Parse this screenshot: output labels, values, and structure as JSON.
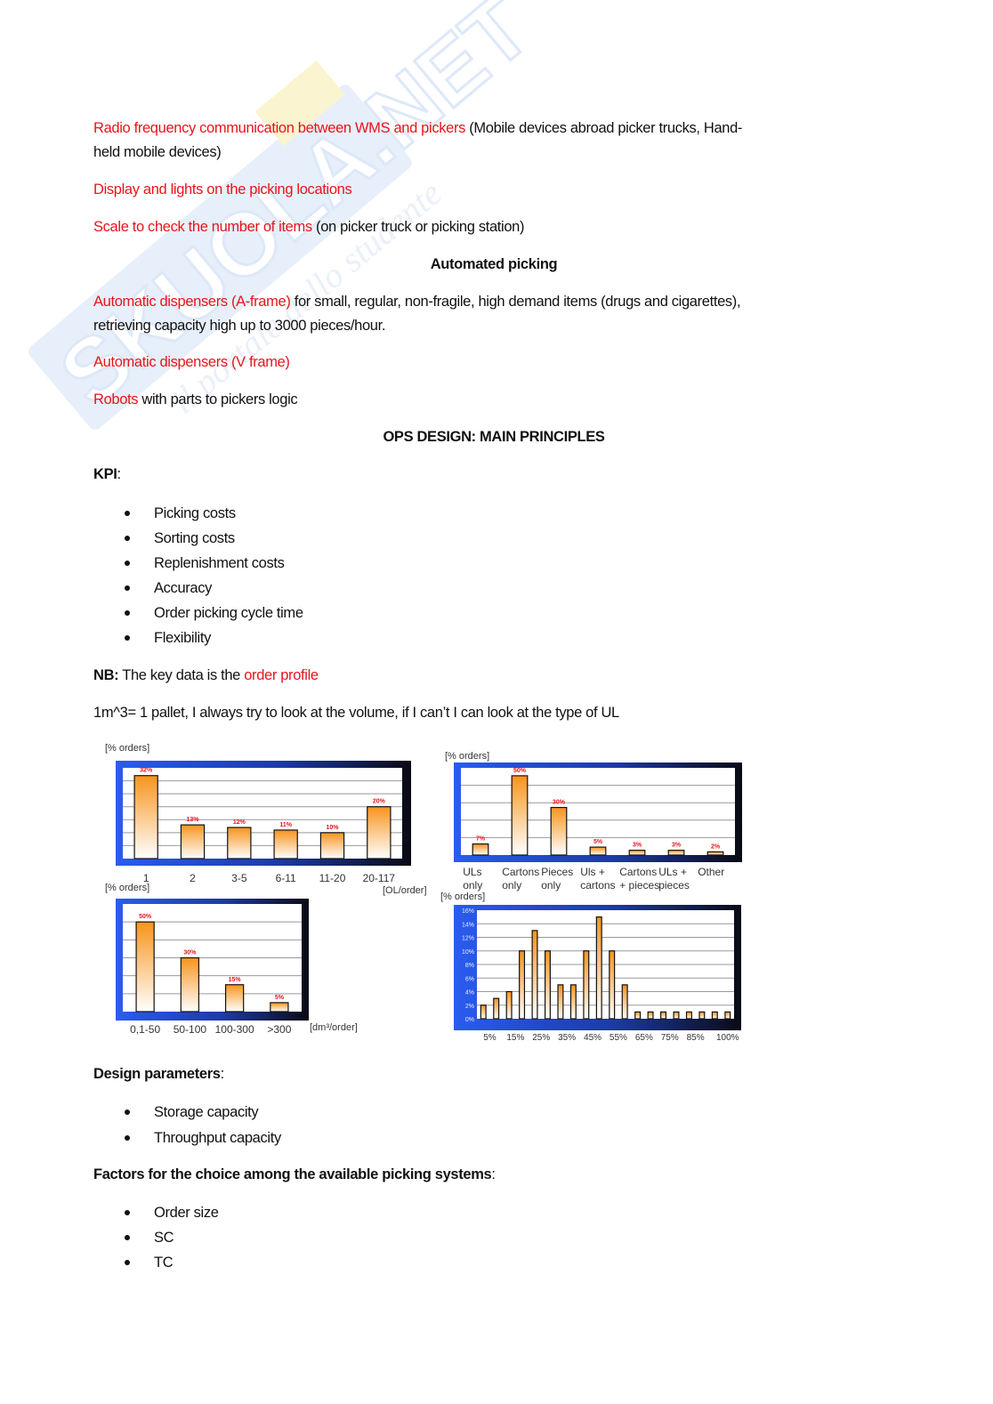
{
  "watermark": {
    "logo_text": "SKUOLA.NET",
    "tagline": "il portale dello studente"
  },
  "paragraphs": {
    "rf_red": "Radio frequency communication between WMS and pickers",
    "rf_rest1": " (Mobile devices abroad picker trucks, Hand-",
    "rf_rest2": "held mobile devices)",
    "display_red": "Display and lights on the picking locations",
    "scale_red": "Scale to check the number of items",
    "scale_rest": " (on picker truck or picking station)",
    "automated_heading": "Automated picking",
    "aframe_red": "Automatic dispensers (A-frame)",
    "aframe_rest1": " for small, regular, non-fragile, high demand items (drugs and cigarettes),",
    "aframe_rest2": "retrieving capacity high up to 3000 pieces/hour.",
    "vframe_red": "Automatic dispensers (V frame)",
    "robots_red": "Robots",
    "robots_rest": " with parts to pickers logic",
    "ops_heading": "OPS DESIGN: MAIN PRINCIPLES",
    "kpi_label": "KPI",
    "kpi_colon": ":",
    "kpi_items": [
      "Picking costs",
      "Sorting costs",
      "Replenishment costs",
      "Accuracy",
      "Order picking cycle time",
      "Flexibility"
    ],
    "nb_label": "NB:",
    "nb_text": " The key data is the ",
    "nb_red": "order profile",
    "volume_text": "1m^3= 1 pallet, I always try to look at the volume, if I can’t I can look at the type of UL",
    "design_label": "Design parameters",
    "design_colon": ":",
    "design_items": [
      "Storage capacity",
      "Throughput capacity"
    ],
    "factors_label": "Factors for the choice among the available picking systems",
    "factors_colon": ":",
    "factors_items": [
      "Order size",
      "SC",
      "TC"
    ]
  },
  "colors": {
    "highlight_red": "#e8141c",
    "frame_blue": "#2a5cf0",
    "frame_dark": "#0a0a14",
    "bar_orange": "#f7941d",
    "value_label_red": "#e8141c"
  },
  "chart_data": [
    {
      "type": "bar",
      "ylabel": "[% orders]",
      "xlabel": "[OL/order]",
      "categories": [
        "1",
        "2",
        "3-5",
        "6-11",
        "11-20",
        "20-117"
      ],
      "values": [
        32,
        13,
        12,
        11,
        10,
        20
      ],
      "value_labels": [
        "32%",
        "13%",
        "12%",
        "11%",
        "10%",
        "20%"
      ],
      "ylim": [
        0,
        35
      ],
      "grid": true
    },
    {
      "type": "bar",
      "ylabel": "[% orders]",
      "xlabel": "",
      "categories": [
        [
          "ULs",
          "only"
        ],
        [
          "Cartons",
          "only"
        ],
        [
          "Pieces",
          "only"
        ],
        [
          "Uls +",
          "cartons"
        ],
        [
          "Cartons",
          "+ pieces"
        ],
        [
          "ULs +",
          "pieces"
        ],
        [
          "Other",
          ""
        ]
      ],
      "values": [
        7,
        50,
        30,
        5,
        3,
        3,
        2
      ],
      "value_labels": [
        "7%",
        "50%",
        "30%",
        "5%",
        "3%",
        "3%",
        "2%"
      ],
      "ylim": [
        0,
        55
      ],
      "grid": true
    },
    {
      "type": "bar",
      "ylabel": "[% orders]",
      "xlabel": "[dm³/order]",
      "categories": [
        "0,1-50",
        "50-100",
        "100-300",
        ">300"
      ],
      "values": [
        50,
        30,
        15,
        5
      ],
      "value_labels": [
        "50%",
        "30%",
        "15%",
        "5%"
      ],
      "ylim": [
        0,
        60
      ],
      "grid": true
    },
    {
      "type": "bar",
      "ylabel": "[% orders]",
      "xlabel": "",
      "x": [
        "5%",
        "10%",
        "15%",
        "20%",
        "25%",
        "30%",
        "35%",
        "40%",
        "45%",
        "50%",
        "55%",
        "60%",
        "65%",
        "70%",
        "75%",
        "80%",
        "85%",
        "90%",
        "95%",
        "100%"
      ],
      "tick_labels": [
        "5%",
        "15%",
        "25%",
        "35%",
        "45%",
        "55%",
        "65%",
        "75%",
        "85%",
        "100%"
      ],
      "values": [
        2,
        3,
        4,
        10,
        13,
        10,
        5,
        5,
        10,
        15,
        10,
        5,
        1,
        1,
        1,
        1,
        1,
        1,
        1,
        1
      ],
      "yticks": [
        "0%",
        "2%",
        "4%",
        "6%",
        "8%",
        "10%",
        "12%",
        "14%",
        "16%"
      ],
      "ylim": [
        0,
        16
      ],
      "grid": true
    }
  ]
}
